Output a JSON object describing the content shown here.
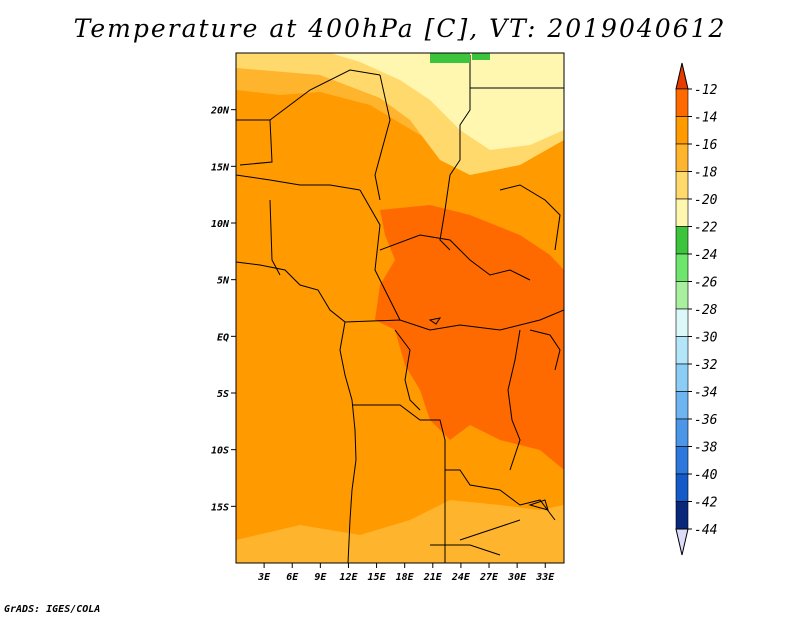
{
  "title": "Temperature at 400hPa [C], VT: 2019040612",
  "credit": "GrADS: IGES/COLA",
  "map": {
    "lon_range": [
      0,
      35
    ],
    "lat_range": [
      -20,
      25
    ],
    "lat_ticks": [
      {
        "value": 20,
        "label": "20N"
      },
      {
        "value": 15,
        "label": "15N"
      },
      {
        "value": 10,
        "label": "10N"
      },
      {
        "value": 5,
        "label": "5N"
      },
      {
        "value": 0,
        "label": "EQ"
      },
      {
        "value": -5,
        "label": "5S"
      },
      {
        "value": -10,
        "label": "10S"
      },
      {
        "value": -15,
        "label": "15S"
      }
    ],
    "lon_ticks": [
      {
        "value": 3,
        "label": "3E"
      },
      {
        "value": 6,
        "label": "6E"
      },
      {
        "value": 9,
        "label": "9E"
      },
      {
        "value": 12,
        "label": "12E"
      },
      {
        "value": 15,
        "label": "15E"
      },
      {
        "value": 18,
        "label": "18E"
      },
      {
        "value": 21,
        "label": "21E"
      },
      {
        "value": 24,
        "label": "24E"
      },
      {
        "value": 27,
        "label": "27E"
      },
      {
        "value": 30,
        "label": "30E"
      },
      {
        "value": 33,
        "label": "33E"
      }
    ]
  },
  "colorbar": {
    "labels": [
      "-12",
      "-14",
      "-16",
      "-18",
      "-20",
      "-22",
      "-24",
      "-26",
      "-28",
      "-30",
      "-32",
      "-34",
      "-36",
      "-38",
      "-40",
      "-42",
      "-44"
    ],
    "colors": [
      "#e63c00",
      "#ff6a00",
      "#ff9a00",
      "#ffb42d",
      "#ffd96b",
      "#fff6b0",
      "#3cc43c",
      "#6ee66e",
      "#a8f0a0",
      "#dcf8f8",
      "#b4e6fa",
      "#8ccdf5",
      "#6eb4f0",
      "#4b96e6",
      "#2d78dc",
      "#145ac8",
      "#0a287a",
      "#0a0a5a"
    ]
  },
  "field": {
    "zones": [
      {
        "name": "north-band",
        "value": -17,
        "color": "#ffb42d"
      },
      {
        "name": "northeast-band",
        "value": -19,
        "color": "#ffd96b"
      },
      {
        "name": "sahara-northeast",
        "value": -21,
        "color": "#fff6b0"
      },
      {
        "name": "central-warm-core",
        "value": -13,
        "color": "#ff6a00"
      },
      {
        "name": "south-band",
        "value": -17,
        "color": "#ffb42d"
      },
      {
        "name": "background",
        "value": -15,
        "color": "#ff9a00"
      }
    ]
  }
}
